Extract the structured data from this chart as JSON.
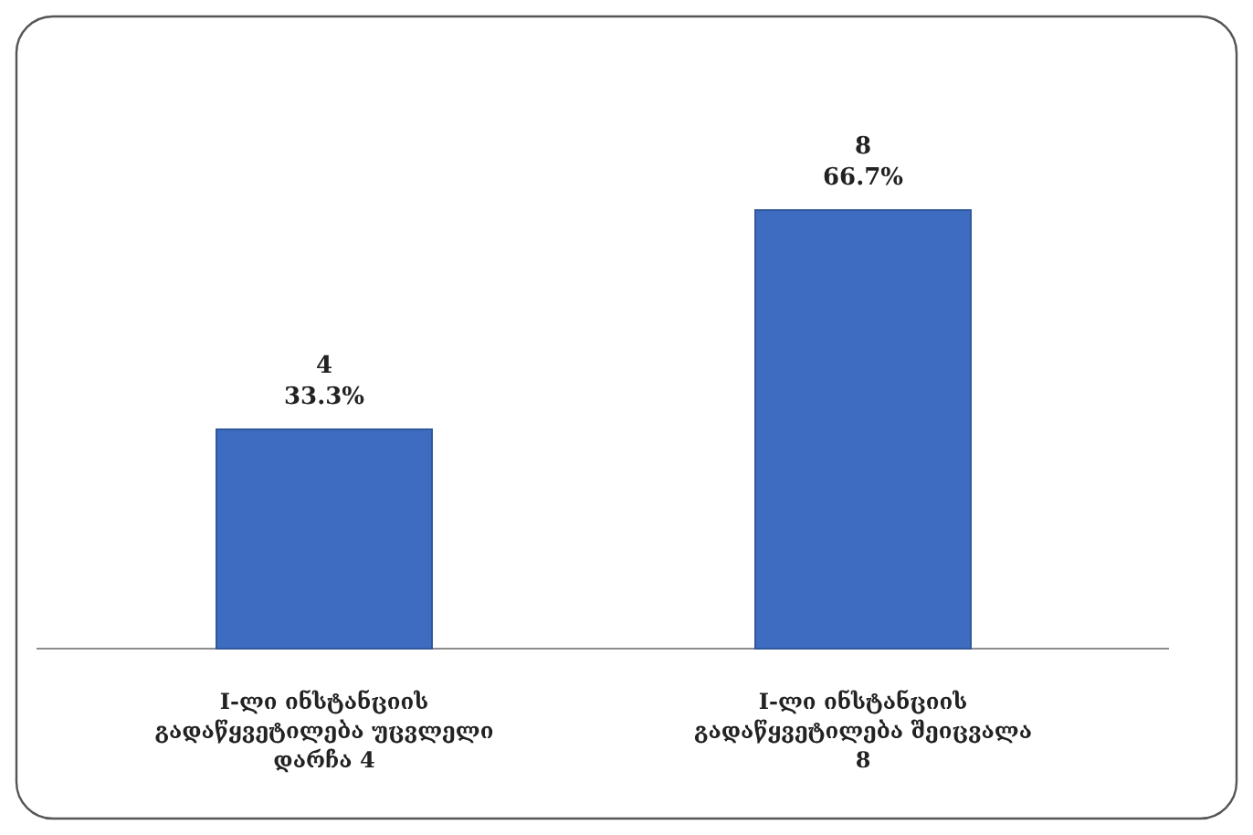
{
  "chart_data": {
    "type": "bar",
    "categories": [
      "I-ლი ინსტანციის გადაწყვეტილება უცვლელი დარჩა 4",
      "I-ლი ინსტანციის გადაწყვეტილება შეიცვალა 8"
    ],
    "values": [
      4,
      8
    ],
    "color": "#3d6cc0",
    "value_labels": [
      "4\n33.3%",
      "8\n66.7%"
    ]
  }
}
